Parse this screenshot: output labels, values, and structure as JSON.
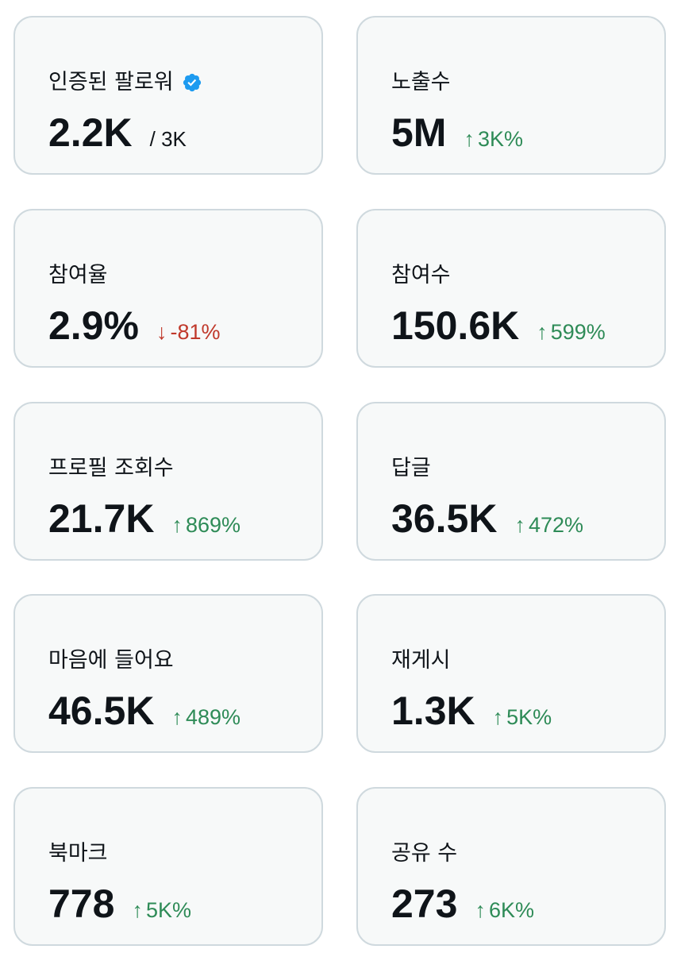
{
  "cards": [
    {
      "label": "인증된 팔로워",
      "value": "2.2K",
      "suffix": "/ 3K",
      "verified": true
    },
    {
      "label": "노출수",
      "value": "5M",
      "change_arrow": "↑",
      "change": "3K%",
      "direction": "up"
    },
    {
      "label": "참여율",
      "value": "2.9%",
      "change_arrow": "↓",
      "change": "-81%",
      "direction": "down"
    },
    {
      "label": "참여수",
      "value": "150.6K",
      "change_arrow": "↑",
      "change": "599%",
      "direction": "up"
    },
    {
      "label": "프로필 조회수",
      "value": "21.7K",
      "change_arrow": "↑",
      "change": "869%",
      "direction": "up"
    },
    {
      "label": "답글",
      "value": "36.5K",
      "change_arrow": "↑",
      "change": "472%",
      "direction": "up"
    },
    {
      "label": "마음에 들어요",
      "value": "46.5K",
      "change_arrow": "↑",
      "change": "489%",
      "direction": "up"
    },
    {
      "label": "재게시",
      "value": "1.3K",
      "change_arrow": "↑",
      "change": "5K%",
      "direction": "up"
    },
    {
      "label": "북마크",
      "value": "778",
      "change_arrow": "↑",
      "change": "5K%",
      "direction": "up"
    },
    {
      "label": "공유 수",
      "value": "273",
      "change_arrow": "↑",
      "change": "6K%",
      "direction": "up"
    }
  ],
  "colors": {
    "up": "#2e8b57",
    "down": "#c0392b",
    "verified": "#1d9bf0",
    "card_bg": "#f7f9f9",
    "card_border": "#cfd9de"
  },
  "icons": {
    "verified": "verified-badge-icon"
  }
}
